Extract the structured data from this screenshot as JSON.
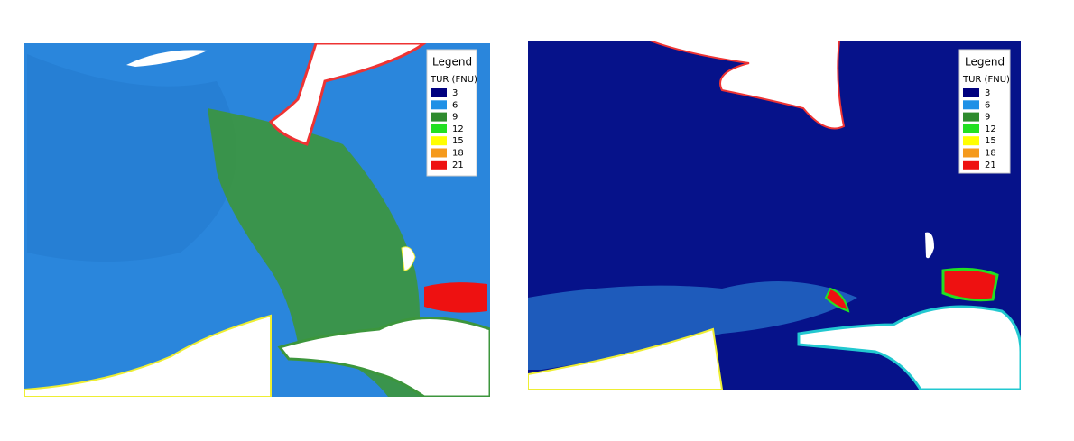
{
  "panels": [
    {
      "legend": {
        "title": "Legend",
        "variable": "TUR (FNU)",
        "classes": [
          {
            "value": 3,
            "color": "#00007f"
          },
          {
            "value": 6,
            "color": "#1e90e6"
          },
          {
            "value": 9,
            "color": "#2e8b2e"
          },
          {
            "value": 12,
            "color": "#22e022"
          },
          {
            "value": 15,
            "color": "#ffff00"
          },
          {
            "value": 18,
            "color": "#f59a1c"
          },
          {
            "value": 21,
            "color": "#ee1111"
          }
        ]
      }
    },
    {
      "legend": {
        "title": "Legend",
        "variable": "TUR (FNU)",
        "classes": [
          {
            "value": 3,
            "color": "#00007f"
          },
          {
            "value": 6,
            "color": "#1e90e6"
          },
          {
            "value": 9,
            "color": "#2e8b2e"
          },
          {
            "value": 12,
            "color": "#22e022"
          },
          {
            "value": 15,
            "color": "#ffff00"
          },
          {
            "value": 18,
            "color": "#f59a1c"
          },
          {
            "value": 21,
            "color": "#ee1111"
          }
        ]
      }
    }
  ]
}
